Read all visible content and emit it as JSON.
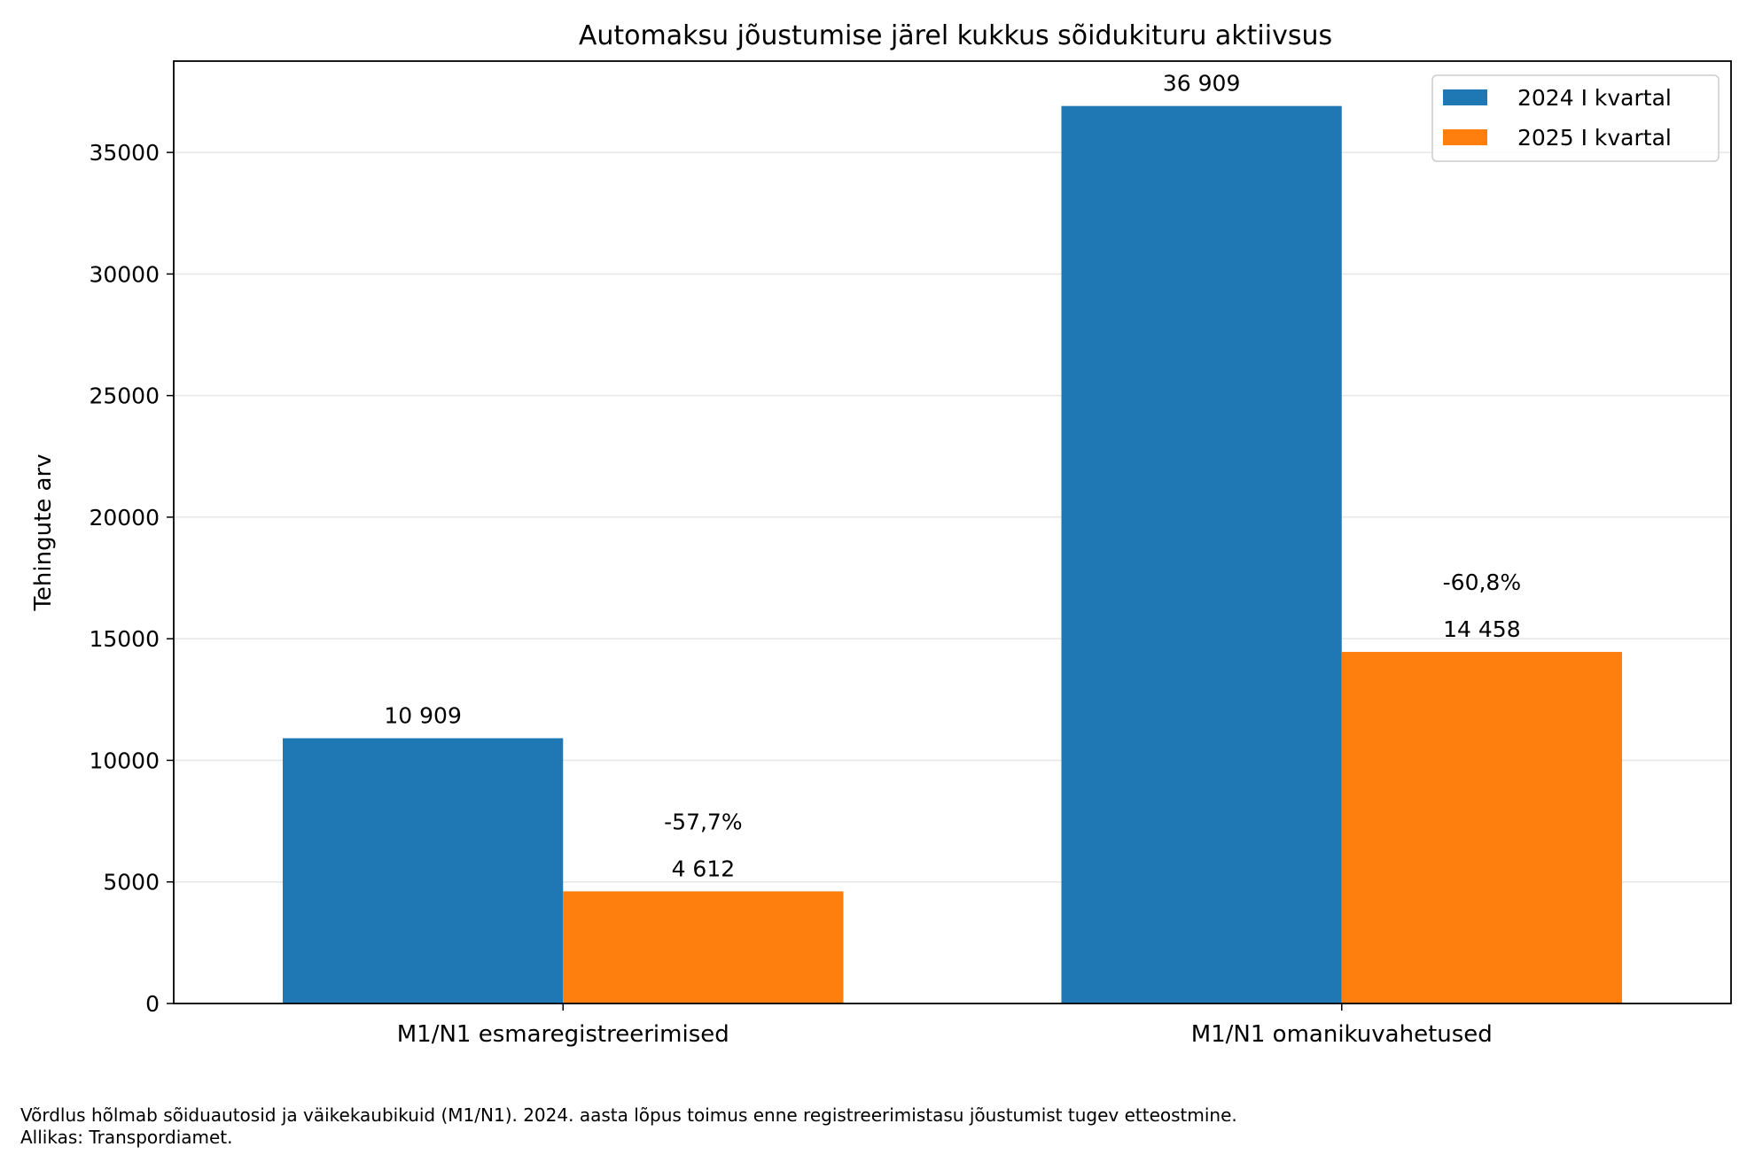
{
  "chart_data": {
    "type": "bar",
    "title": "Automaksu jõustumise järel kukkus sõidukituru aktiivsus",
    "xlabel": "",
    "ylabel": "Tehingute arv",
    "categories": [
      "M1/N1 esmaregistreerimised",
      "M1/N1 omanikuvahetused"
    ],
    "series": [
      {
        "name": "2024 I kvartal",
        "values": [
          10909,
          36909
        ],
        "labels": [
          "10 909",
          "36 909"
        ],
        "color": "#1f77b4"
      },
      {
        "name": "2025 I kvartal",
        "values": [
          4612,
          14458
        ],
        "labels": [
          "4 612",
          "14 458"
        ],
        "color": "#ff7f0e"
      }
    ],
    "change_labels": [
      "-57,7%",
      "-60,8%"
    ],
    "yticks": [
      0,
      5000,
      10000,
      15000,
      20000,
      25000,
      30000,
      35000
    ],
    "ylim": [
      0,
      38755
    ],
    "grid": "horizontal",
    "legend_position": "top-right"
  },
  "footnote": {
    "line1": "Võrdlus hõlmab sõiduautosid ja väikekaubikuid (M1/N1). 2024. aasta lõpus toimus enne registreerimistasu jõustumist tugev etteostmine.",
    "line2": "Allikas: Transpordiamet."
  }
}
